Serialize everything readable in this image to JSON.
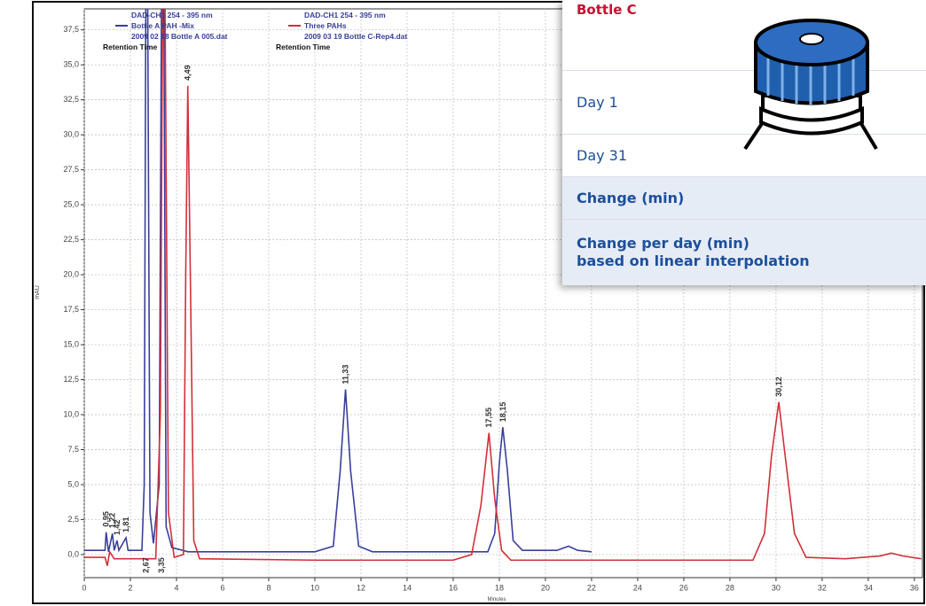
{
  "chart_data": {
    "type": "line",
    "y_label": "mAU",
    "x_label": "Minutes",
    "xlim": [
      0,
      36.35
    ],
    "ylim": [
      -1.65,
      39.0
    ],
    "xticks": [
      0,
      2,
      4,
      6,
      8,
      10,
      12,
      14,
      16,
      18,
      20,
      22,
      24,
      26,
      28,
      30,
      32,
      34,
      36
    ],
    "yticks": [
      {
        "value": 0,
        "label": "0,0"
      },
      {
        "value": 2.5,
        "label": "2,5"
      },
      {
        "value": 5,
        "label": "5,0"
      },
      {
        "value": 7.5,
        "label": "7,5"
      },
      {
        "value": 10,
        "label": "10,0"
      },
      {
        "value": 12.5,
        "label": "12,5"
      },
      {
        "value": 15,
        "label": "15,0"
      },
      {
        "value": 17.5,
        "label": "17,5"
      },
      {
        "value": 20,
        "label": "20,0"
      },
      {
        "value": 22.5,
        "label": "22,5"
      },
      {
        "value": 25,
        "label": "25,0"
      },
      {
        "value": 27.5,
        "label": "27,5"
      },
      {
        "value": 30,
        "label": "30,0"
      },
      {
        "value": 32.5,
        "label": "32,5"
      },
      {
        "value": 35,
        "label": "35,0"
      },
      {
        "value": 37.5,
        "label": "37,5"
      }
    ],
    "grid": true,
    "series": [
      {
        "name": "Bottle A PAH -Mix",
        "color": "#3a3f9a",
        "detector": "DAD-CH1  254 - 395 nm",
        "file": "2009 02 18  Bottle A 005.dat",
        "caption": "Retention Time",
        "x": [
          0,
          0.9,
          0.95,
          1.05,
          1.22,
          1.3,
          1.42,
          1.5,
          1.81,
          1.9,
          2.5,
          2.6,
          2.67,
          2.75,
          2.85,
          3.0,
          3.25,
          3.35,
          3.45,
          3.55,
          3.8,
          4.5,
          6,
          10,
          10.8,
          11.1,
          11.33,
          11.55,
          11.9,
          12.5,
          17.5,
          17.8,
          18.0,
          18.15,
          18.35,
          18.6,
          19,
          20.5,
          21,
          21.4,
          22
        ],
        "values": [
          0.3,
          0.3,
          1.6,
          0.2,
          1.5,
          0.3,
          1.0,
          0.3,
          1.2,
          0.3,
          0.3,
          5,
          40,
          40,
          3,
          0.8,
          5,
          40,
          40,
          2,
          0.5,
          0.2,
          0.2,
          0.2,
          0.6,
          6,
          11.8,
          6,
          0.6,
          0.2,
          0.2,
          1.5,
          6.5,
          9.1,
          6,
          1,
          0.3,
          0.3,
          0.6,
          0.3,
          0.2
        ]
      },
      {
        "name": "Three PAHs",
        "color": "#d1303a",
        "detector": "DAD-CH1  254 - 395 nm",
        "file": "2009 03 19  Bottle C-Rep4.dat",
        "caption": "Retention Time",
        "x": [
          0,
          0.9,
          1.0,
          1.1,
          1.3,
          3.1,
          3.3,
          3.4,
          3.5,
          3.65,
          3.9,
          4.3,
          4.4,
          4.49,
          4.6,
          4.75,
          5,
          10,
          16,
          16.8,
          17.2,
          17.55,
          17.8,
          18.1,
          18.5,
          22,
          29,
          29.5,
          29.8,
          30.12,
          30.4,
          30.8,
          31.3,
          33,
          34.5,
          35,
          35.5,
          36.3
        ],
        "values": [
          -0.2,
          -0.2,
          -0.8,
          0.2,
          -0.3,
          -0.3,
          10,
          40,
          40,
          3,
          -0.2,
          0,
          20,
          33.5,
          20,
          1,
          -0.3,
          -0.4,
          -0.4,
          0,
          3.5,
          8.7,
          4,
          0.3,
          -0.4,
          -0.4,
          -0.4,
          1.5,
          7,
          10.9,
          7,
          1.5,
          -0.2,
          -0.3,
          -0.1,
          0.1,
          -0.1,
          -0.3
        ]
      }
    ],
    "annotations": [
      {
        "x": 0.95,
        "label": "0,95"
      },
      {
        "x": 1.22,
        "label": "1,22"
      },
      {
        "x": 1.42,
        "label": "1,42"
      },
      {
        "x": 1.81,
        "label": "1,81"
      },
      {
        "x": 2.67,
        "label": "2,67"
      },
      {
        "x": 3.35,
        "label": "3,35"
      },
      {
        "x": 4.49,
        "label": "4,49"
      },
      {
        "x": 11.33,
        "label": "11,33"
      },
      {
        "x": 17.55,
        "label": "17,55"
      },
      {
        "x": 18.15,
        "label": "18,15"
      },
      {
        "x": 30.12,
        "label": "30,12"
      }
    ]
  },
  "table": {
    "header": "Bottle C",
    "rows": [
      "Day 1",
      "Day 31",
      "Change (min)",
      "Change per day (min)\nbased on linear interpolation"
    ]
  }
}
